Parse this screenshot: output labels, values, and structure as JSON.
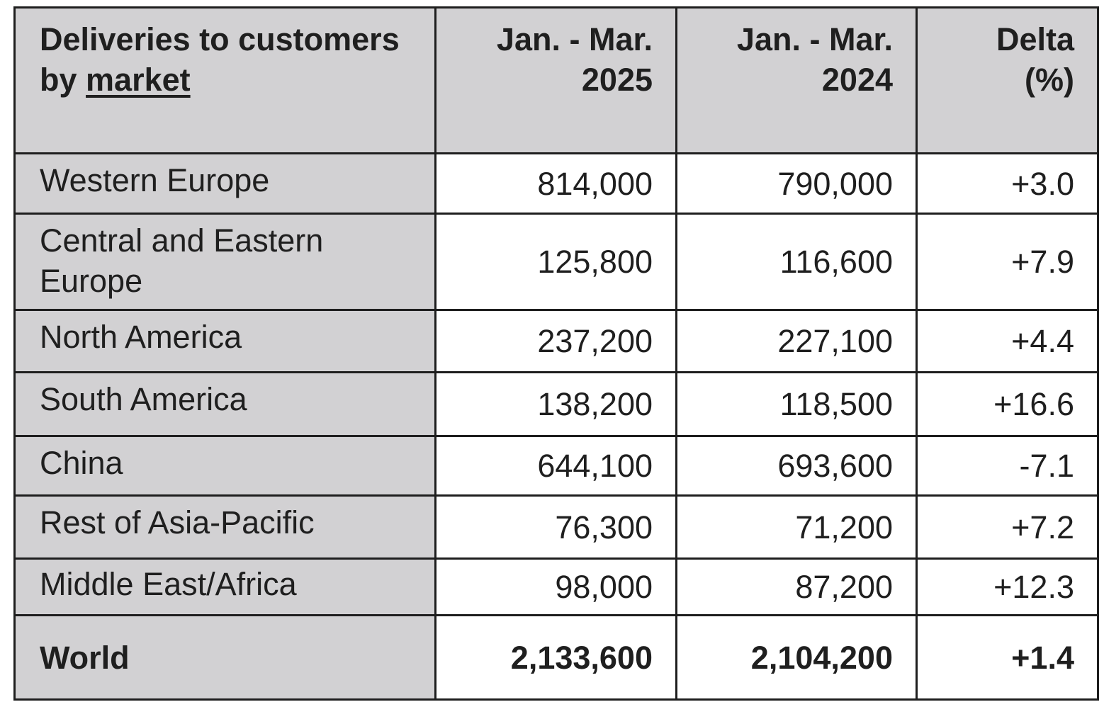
{
  "table": {
    "header": {
      "market_line1": "Deliveries to customers",
      "market_line2_prefix": "by ",
      "market_line2_link": "market",
      "col2_line1": "Jan. - Mar.",
      "col2_line2": "2025",
      "col3_line1": "Jan. - Mar.",
      "col3_line2": "2024",
      "col4_line1": "Delta",
      "col4_line2": "(%)"
    },
    "rows": [
      {
        "market": "Western Europe",
        "y2025": "814,000",
        "y2024": "790,000",
        "delta": "+3.0"
      },
      {
        "market_line1": "Central and Eastern",
        "market_line2": "Europe",
        "y2025": "125,800",
        "y2024": "116,600",
        "delta": "+7.9"
      },
      {
        "market": "North America",
        "y2025": "237,200",
        "y2024": "227,100",
        "delta": "+4.4"
      },
      {
        "market": "South America",
        "y2025": "138,200",
        "y2024": "118,500",
        "delta": "+16.6"
      },
      {
        "market": "China",
        "y2025": "644,100",
        "y2024": "693,600",
        "delta": "-7.1"
      },
      {
        "market": "Rest of Asia-Pacific",
        "y2025": "76,300",
        "y2024": "71,200",
        "delta": "+7.2"
      },
      {
        "market": "Middle East/Africa",
        "y2025": "98,000",
        "y2024": "87,200",
        "delta": "+12.3"
      }
    ],
    "total": {
      "market": "World",
      "y2025": "2,133,600",
      "y2024": "2,104,200",
      "delta": "+1.4"
    }
  }
}
